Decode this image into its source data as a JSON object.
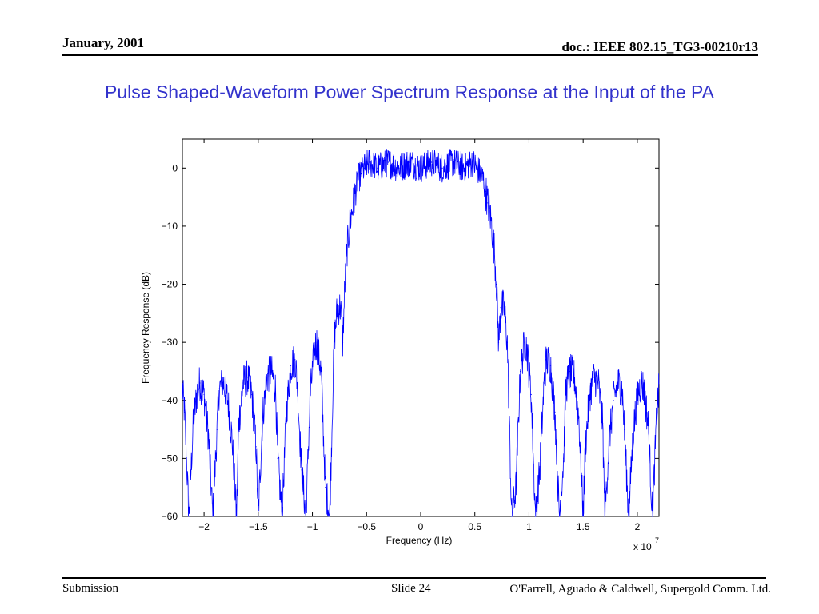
{
  "header": {
    "date": "January, 2001",
    "doc_id": "doc.: IEEE 802.15_TG3-00210r13"
  },
  "slide": {
    "title": "Pulse Shaped-Waveform Power Spectrum Response at the Input of the PA"
  },
  "footer": {
    "submission": "Submission",
    "slide_number": "Slide 24",
    "authors": "O'Farrell, Aguado & Caldwell, Supergold Comm. Ltd."
  },
  "colors": {
    "title": "#3333cc",
    "series": "#0000ff"
  },
  "chart_data": {
    "type": "line",
    "title": "",
    "xlabel": "Frequency (Hz)",
    "ylabel": "Frequency Response (dB)",
    "x_multiplier": "x 10",
    "x_multiplier_exp": "7",
    "xlim": [
      -2.2,
      2.2
    ],
    "ylim": [
      -60,
      5
    ],
    "x_ticks": [
      -2,
      -1.5,
      -1,
      -0.5,
      0,
      0.5,
      1,
      1.5,
      2
    ],
    "x_tick_labels": [
      "−2",
      "−1.5",
      "−1",
      "−0.5",
      "0",
      "0.5",
      "1",
      "1.5",
      "2"
    ],
    "y_ticks": [
      0,
      -10,
      -20,
      -30,
      -40,
      -50,
      -60
    ],
    "y_tick_labels": [
      "0",
      "−10",
      "−20",
      "−30",
      "−40",
      "−50",
      "−60"
    ],
    "grid": false,
    "series": [
      {
        "x": [
          -2.2,
          -2.18,
          -2.14,
          -2.1,
          -2.06,
          -2.04,
          -2.0,
          -1.96,
          -1.92,
          -1.88,
          -1.86,
          -1.82,
          -1.78,
          -1.74,
          -1.7,
          -1.68,
          -1.64,
          -1.6,
          -1.56,
          -1.52,
          -1.5,
          -1.46,
          -1.42,
          -1.38,
          -1.34,
          -1.32,
          -1.28,
          -1.24,
          -1.2,
          -1.16,
          -1.14,
          -1.1,
          -1.06,
          -1.02,
          -0.98,
          -0.96,
          -0.92,
          -0.88,
          -0.84,
          -0.8,
          -0.77,
          -0.74,
          -0.72,
          -0.7,
          -0.68,
          -0.65,
          -0.62,
          -0.6,
          -0.58,
          -0.55,
          -0.52,
          -0.48,
          -0.4,
          -0.3,
          -0.2,
          -0.1,
          0.0,
          0.1,
          0.2,
          0.3,
          0.4,
          0.48,
          0.52,
          0.55,
          0.58,
          0.6,
          0.62,
          0.65,
          0.68,
          0.7,
          0.72,
          0.74,
          0.77,
          0.8,
          0.84,
          0.88,
          0.92,
          0.96,
          0.98,
          1.02,
          1.06,
          1.1,
          1.14,
          1.16,
          1.2,
          1.24,
          1.28,
          1.32,
          1.34,
          1.38,
          1.42,
          1.46,
          1.5,
          1.52,
          1.56,
          1.6,
          1.64,
          1.68,
          1.7,
          1.74,
          1.78,
          1.82,
          1.86,
          1.88,
          1.92,
          1.96,
          2.0,
          2.04,
          2.06,
          2.1,
          2.14,
          2.18,
          2.2
        ],
        "y": [
          -38,
          -42,
          -60,
          -44,
          -38,
          -37,
          -39,
          -46,
          -60,
          -45,
          -38,
          -37,
          -40,
          -47,
          -60,
          -44,
          -37,
          -36,
          -39,
          -48,
          -60,
          -43,
          -36,
          -35,
          -38,
          -50,
          -60,
          -42,
          -34,
          -33,
          -37,
          -52,
          -60,
          -39,
          -31,
          -30,
          -35,
          -55,
          -60,
          -30,
          -24,
          -24,
          -30,
          -20,
          -14,
          -9,
          -6,
          -4,
          -2,
          -1,
          0,
          1,
          0,
          1,
          0,
          1,
          0,
          1,
          0,
          1,
          0,
          1,
          0,
          -1,
          -2,
          -4,
          -6,
          -9,
          -14,
          -20,
          -30,
          -24,
          -24,
          -30,
          -60,
          -55,
          -35,
          -30,
          -31,
          -39,
          -60,
          -52,
          -37,
          -33,
          -34,
          -42,
          -60,
          -50,
          -38,
          -35,
          -36,
          -43,
          -60,
          -48,
          -39,
          -36,
          -37,
          -44,
          -60,
          -47,
          -40,
          -37,
          -38,
          -45,
          -60,
          -46,
          -39,
          -37,
          -38,
          -44,
          -60,
          -42,
          -38
        ]
      }
    ]
  }
}
